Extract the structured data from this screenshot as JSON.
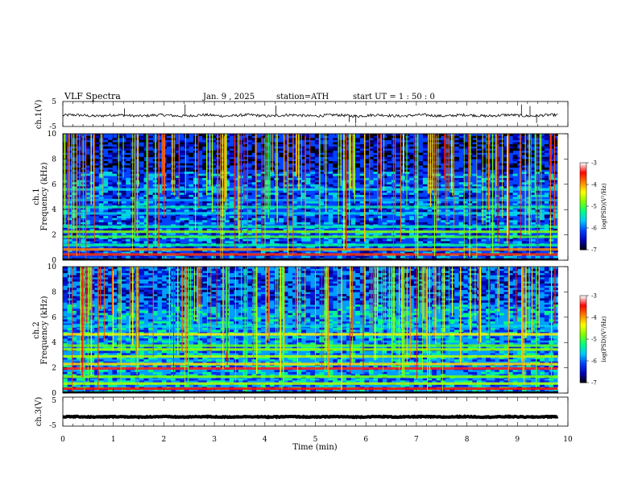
{
  "header": {
    "title": "VLF  Spectra",
    "date": "Jan. 9  , 2025",
    "station": "station=ATH",
    "start_ut": "start  UT  =   1 : 50 : 0"
  },
  "chart_data": [
    {
      "type": "line",
      "panel": "ch1",
      "ylabel": "ch.1(V)",
      "ylim": [
        -5,
        5
      ],
      "yticks": [
        "5",
        "-5"
      ],
      "xlim": [
        0,
        10
      ],
      "trace": {
        "x_start": 0,
        "x_end": 9.8,
        "level": -0.6,
        "noise": 0.55,
        "spikes": [
          {
            "x": 1.22,
            "y": 2.2
          },
          {
            "x": 2.42,
            "y": 3.8
          },
          {
            "x": 4.22,
            "y": 3.4
          },
          {
            "x": 5.67,
            "y": -3.2
          },
          {
            "x": 5.8,
            "y": -3.8
          },
          {
            "x": 9.08,
            "y": 3.8
          },
          {
            "x": 9.25,
            "y": 3.2
          },
          {
            "x": 9.38,
            "y": -3.6
          }
        ]
      }
    },
    {
      "type": "heatmap",
      "panel": "ch1-spectrogram",
      "ylabel_channel": "ch.1",
      "ylabel": "Frequency  (kHz)",
      "yticks": [
        "0",
        "2",
        "4",
        "6",
        "8",
        "10"
      ],
      "ylim": [
        0,
        10
      ],
      "xlim": [
        0,
        10
      ],
      "data_end_min": 9.8,
      "colorbar": {
        "label": "log(PSD)(V²/Hz)",
        "range": [
          -7,
          -3
        ],
        "ticks": [
          "-3",
          "-4",
          "-5",
          "-6",
          "-7"
        ]
      },
      "bands": [
        {
          "f": 0.45,
          "level": -3.6
        },
        {
          "f": 0.85,
          "level": -3.9
        },
        {
          "f": 1.2,
          "level": -5.3
        },
        {
          "f": 1.85,
          "level": -5.0
        },
        {
          "f": 2.25,
          "level": -4.8
        },
        {
          "f": 2.65,
          "level": -5.4
        },
        {
          "f": 3.7,
          "level": -5.6
        },
        {
          "f": 4.2,
          "level": -5.4
        },
        {
          "f": 4.75,
          "level": -5.8
        },
        {
          "f": 5.6,
          "level": -5.6
        }
      ],
      "base_level": -6.1
    },
    {
      "type": "heatmap",
      "panel": "ch2-spectrogram",
      "ylabel_channel": "ch.2",
      "ylabel": "Frequency  (kHz)",
      "yticks": [
        "0",
        "2",
        "4",
        "6",
        "8",
        "10"
      ],
      "ylim": [
        0,
        10
      ],
      "xlim": [
        0,
        10
      ],
      "data_end_min": 9.8,
      "colorbar": {
        "label": "log(PSD)(V²/Hz)",
        "range": [
          -7,
          -3
        ],
        "ticks": [
          "-3",
          "-4",
          "-5",
          "-6",
          "-7"
        ]
      },
      "bands": [
        {
          "f": 0.35,
          "level": -3.5
        },
        {
          "f": 0.75,
          "level": -4.6
        },
        {
          "f": 1.3,
          "level": -4.8
        },
        {
          "f": 1.95,
          "level": -3.4
        },
        {
          "f": 2.3,
          "level": -4.2
        },
        {
          "f": 2.9,
          "level": -4.6
        },
        {
          "f": 3.45,
          "level": -4.7
        },
        {
          "f": 3.75,
          "level": -4.9
        },
        {
          "f": 4.65,
          "level": -4.3
        },
        {
          "f": 5.3,
          "level": -5.6
        }
      ],
      "base_level": -5.8
    },
    {
      "type": "line",
      "panel": "ch3",
      "ylabel": "ch.3(V)",
      "ylim": [
        -5,
        5
      ],
      "yticks": [
        "5",
        "-5"
      ],
      "xlim": [
        0,
        10
      ],
      "trace": {
        "x_start": 0,
        "x_end": 9.8,
        "level": -1.8,
        "noise": 0.15
      }
    }
  ],
  "x_axis": {
    "label": "Time  (min)",
    "ticks": [
      "0",
      "1",
      "2",
      "3",
      "4",
      "5",
      "6",
      "7",
      "8",
      "9",
      "10"
    ]
  },
  "colors": {
    "colormap": [
      "#000000",
      "#0000b8",
      "#0040ff",
      "#00c8ff",
      "#00ff80",
      "#80ff00",
      "#ffff00",
      "#ff8000",
      "#ff0000",
      "#ffffff"
    ],
    "trace": "#000000"
  }
}
